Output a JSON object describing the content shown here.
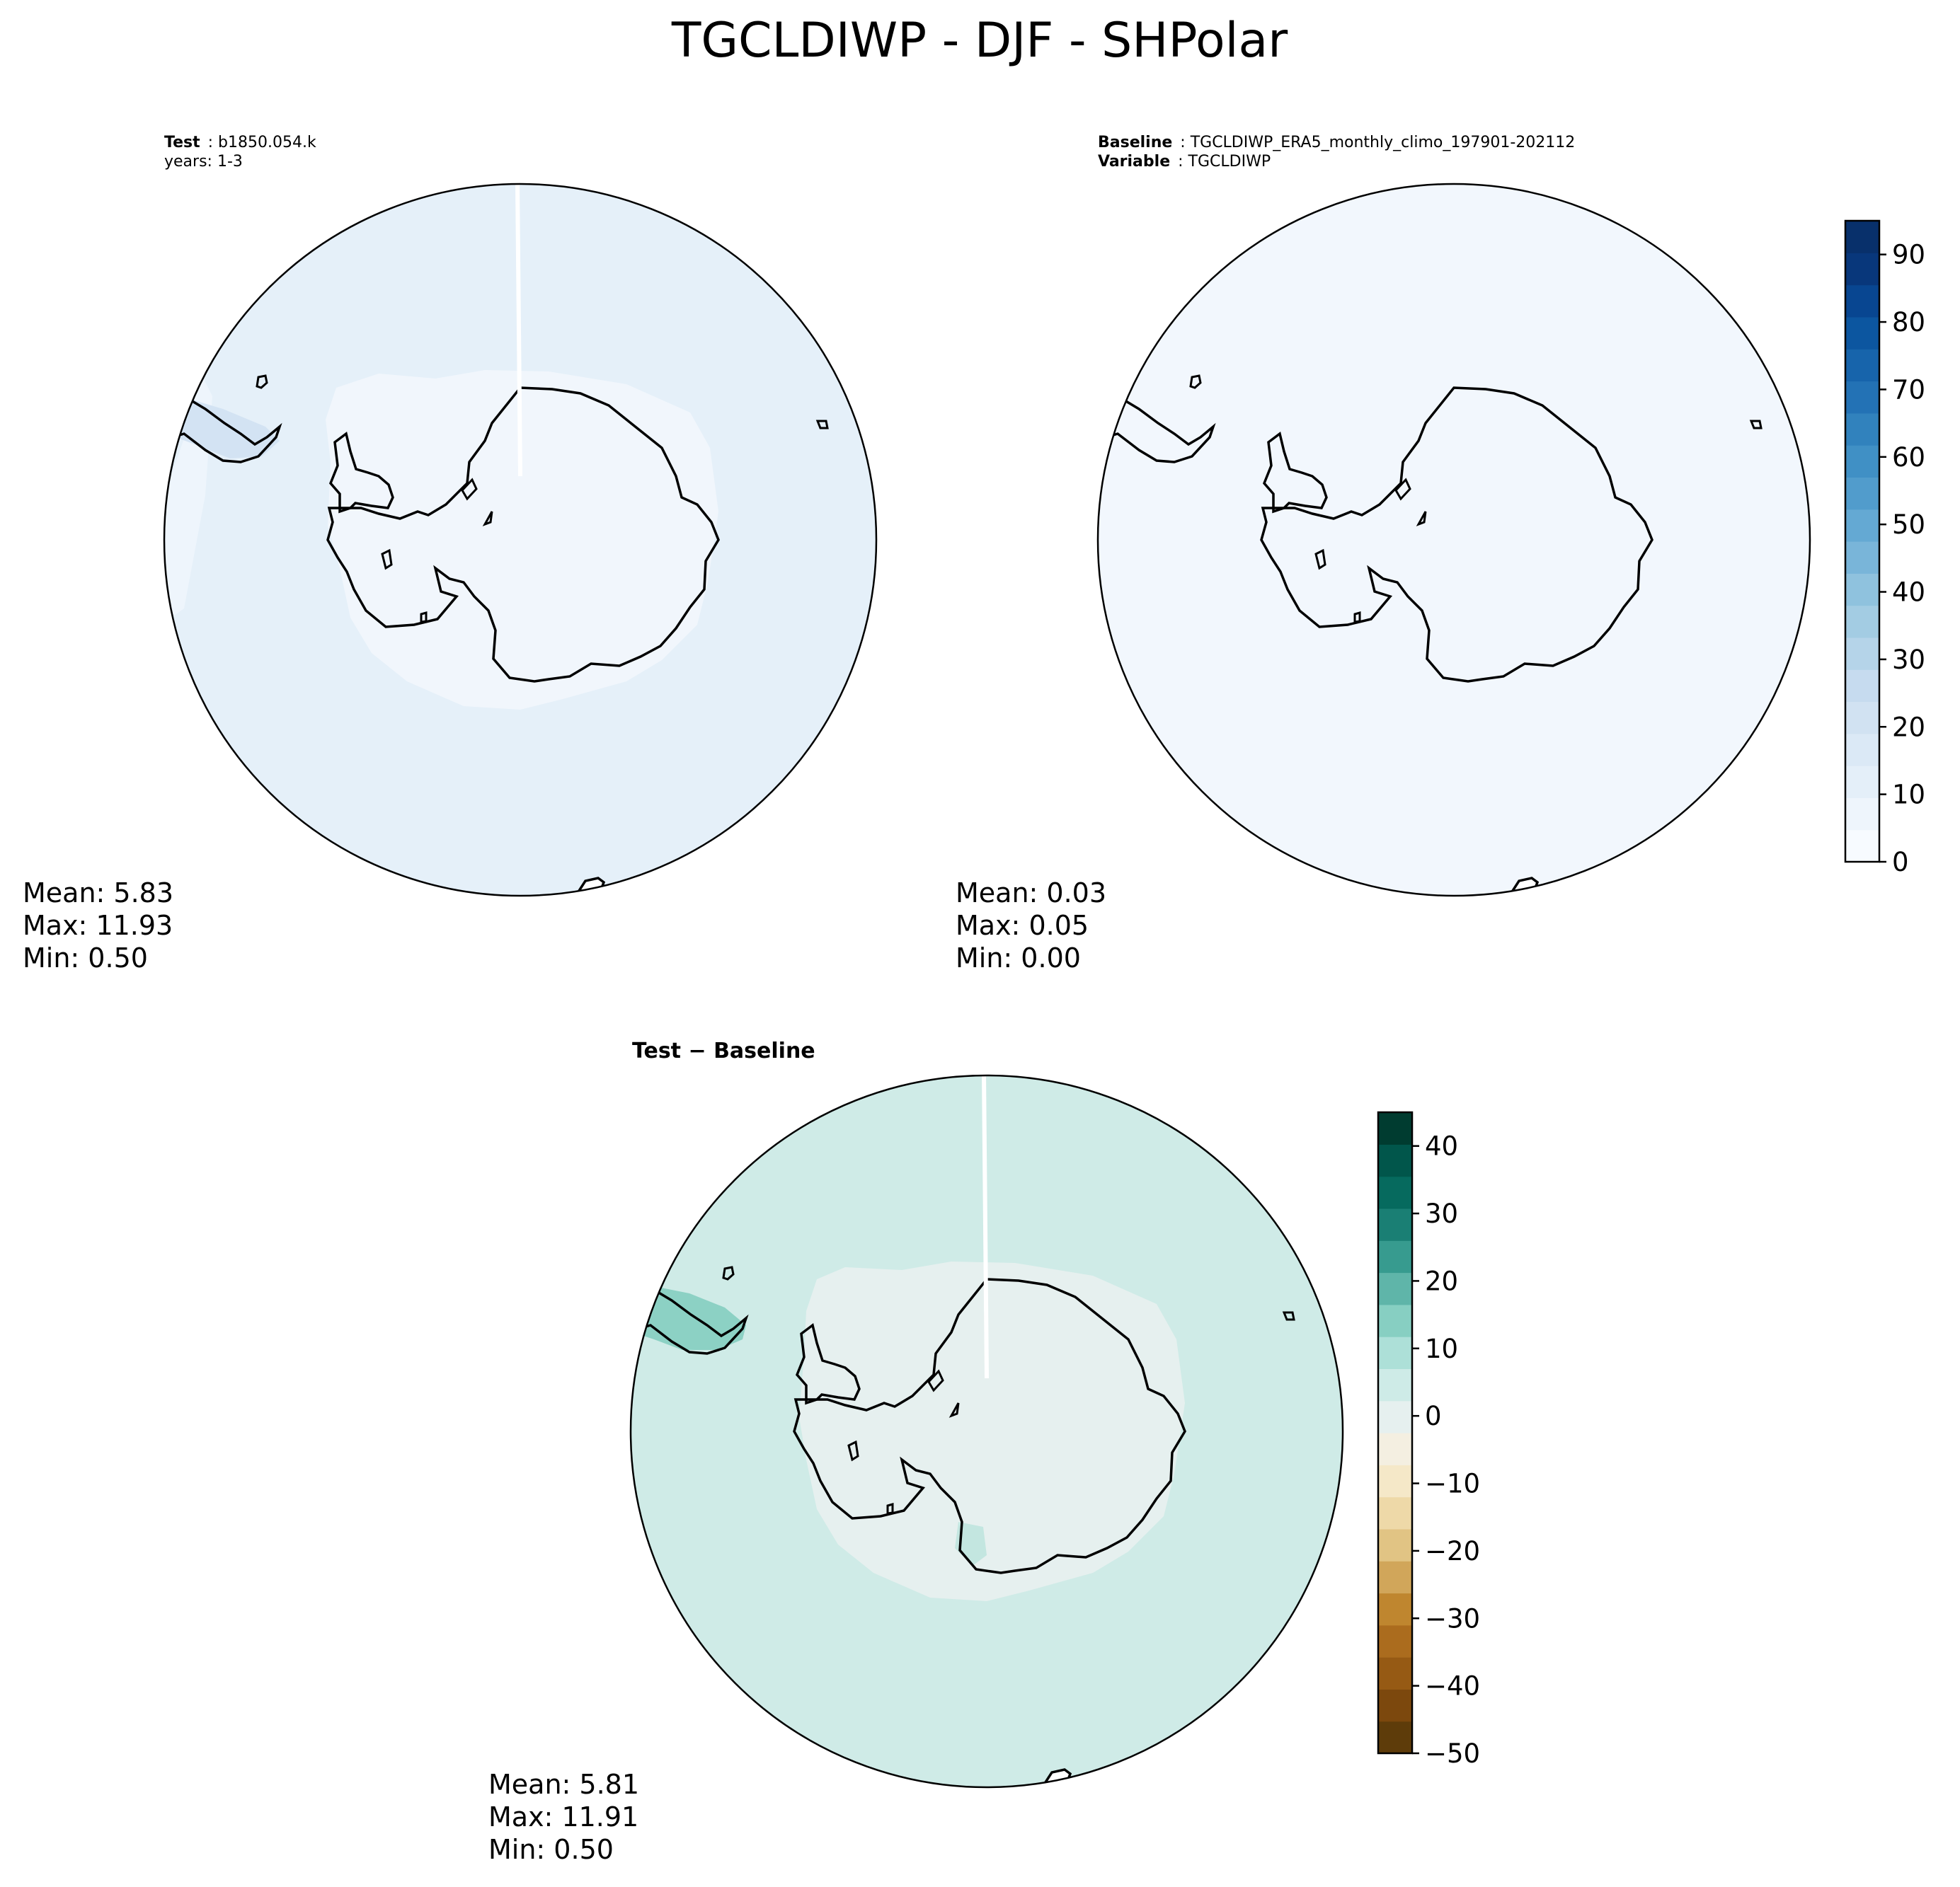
{
  "figure": {
    "title": "TGCLDIWP - DJF - SHPolar"
  },
  "panels": {
    "test": {
      "header_label": "Test",
      "header_value": "b1850.054.k",
      "header_line2": "years: 1-3",
      "mean": "Mean:  5.83",
      "max": "Max: 11.93",
      "min": "Min:  0.50"
    },
    "baseline": {
      "header_label": "Baseline",
      "header_value": "TGCLDIWP_ERA5_monthly_climo_197901-202112",
      "variable_label": "Variable",
      "variable_value": "TGCLDIWP",
      "mean": "Mean:  0.03",
      "max": "Max:  0.05",
      "min": "Min:  0.00"
    },
    "diff": {
      "title_left": "Test",
      "title_sep": " − ",
      "title_right": "Baseline",
      "mean": "Mean:  5.81",
      "max": "Max: 11.91",
      "min": "Min:  0.50"
    }
  },
  "colorbars": {
    "main": {
      "colormap": "Blues",
      "levels_min": 0,
      "levels_max": 95,
      "tick_labels": [
        "0",
        "10",
        "20",
        "30",
        "40",
        "50",
        "60",
        "70",
        "80",
        "90"
      ],
      "colors": [
        "#f7fbff",
        "#eef5fc",
        "#e4eff9",
        "#dbe9f6",
        "#d1e2f2",
        "#c6dbef",
        "#b5d4e9",
        "#a3cce3",
        "#8fc2de",
        "#79b5d9",
        "#64a9d3",
        "#519ccc",
        "#4090c5",
        "#3182bd",
        "#2372b5",
        "#1764ab",
        "#0c56a0",
        "#084691",
        "#08377b",
        "#08306b"
      ]
    },
    "diff": {
      "colormap": "BrBG",
      "levels_min": -50,
      "levels_max": 45,
      "tick_labels": [
        "−50",
        "−40",
        "−30",
        "−20",
        "−10",
        "0",
        "10",
        "20",
        "30",
        "40"
      ],
      "colors": [
        "#5e3c0a",
        "#7c480d",
        "#965a14",
        "#ab6c1e",
        "#bf862f",
        "#d1a65a",
        "#e1c484",
        "#eed9a8",
        "#f5e8c8",
        "#f4efe1",
        "#e6f0ef",
        "#ceebe7",
        "#ade0d8",
        "#87cfc2",
        "#5fb5a9",
        "#379b8f",
        "#1a7f74",
        "#066a5e",
        "#01564b",
        "#003c30"
      ]
    }
  },
  "map_fills": {
    "test_ocean": "#e5f0f9",
    "test_land": "#f1f6fc",
    "baseline": "#f2f7fd",
    "diff_ocean": "#cfebe7",
    "diff_land": "#e6f0ef",
    "diff_peninsula": "#8cd1c4",
    "coastline": "#000000"
  }
}
